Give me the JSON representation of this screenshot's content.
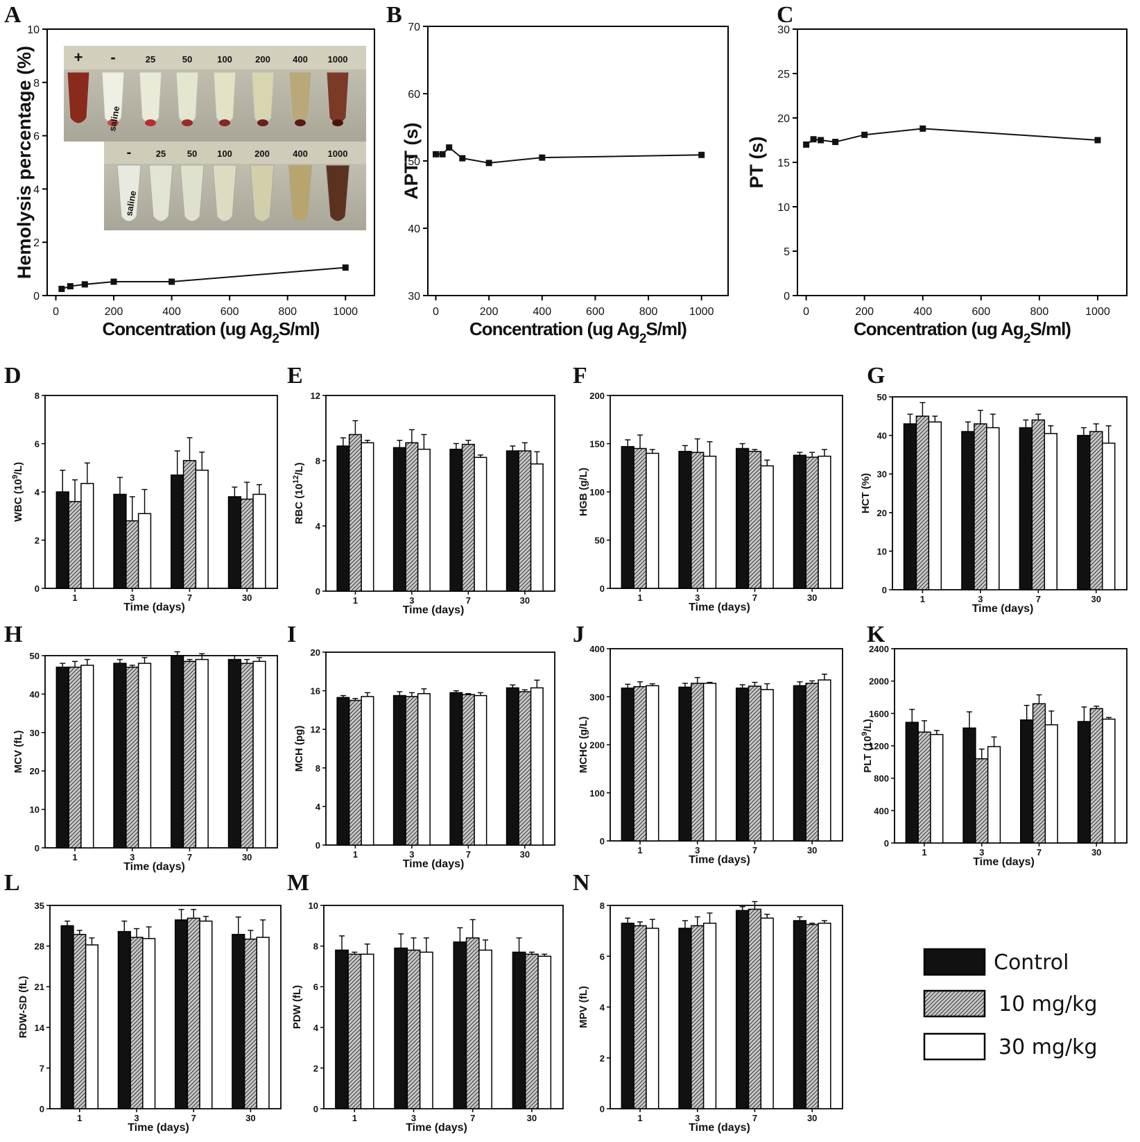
{
  "colors": {
    "control": "#111111",
    "dose10": "#8c8c8c",
    "dose30": "#ffffff",
    "axis": "#000000"
  },
  "legend": [
    {
      "label": "Control",
      "fill": "black"
    },
    {
      "label": "10 mg/kg",
      "fill": "hatch"
    },
    {
      "label": "30 mg/kg",
      "fill": "white"
    }
  ],
  "photo_inset": {
    "row1_labels": [
      "+",
      "-",
      "25",
      "50",
      "100",
      "200",
      "400",
      "1000"
    ],
    "row2_labels": [
      "-",
      "25",
      "50",
      "100",
      "200",
      "400",
      "1000"
    ],
    "tube_text": "saline"
  },
  "chart_data": [
    {
      "panel": "A",
      "type": "line",
      "xlabel": "Concentration (ug Ag₂S/ml)",
      "ylabel": "Hemolysis percentage (%)",
      "xlim": [
        -30,
        1100
      ],
      "ylim": [
        0,
        10
      ],
      "xticks": [
        0,
        200,
        400,
        600,
        800,
        1000
      ],
      "yticks": [
        0,
        2,
        4,
        6,
        8,
        10
      ],
      "x": [
        20,
        50,
        100,
        200,
        400,
        1000
      ],
      "y": [
        0.25,
        0.35,
        0.42,
        0.52,
        0.52,
        1.05
      ]
    },
    {
      "panel": "B",
      "type": "line",
      "xlabel": "Concentration (ug Ag₂S/ml)",
      "ylabel": "APTT (s)",
      "xlim": [
        -30,
        1100
      ],
      "ylim": [
        30,
        70
      ],
      "xticks": [
        0,
        200,
        400,
        600,
        800,
        1000
      ],
      "yticks": [
        30,
        40,
        50,
        60,
        70
      ],
      "x": [
        0,
        25,
        50,
        100,
        200,
        400,
        1000
      ],
      "y": [
        51.0,
        51.0,
        52.0,
        50.4,
        49.7,
        50.5,
        50.9
      ]
    },
    {
      "panel": "C",
      "type": "line",
      "xlabel": "Concentration (ug Ag₂S/ml)",
      "ylabel": "PT (s)",
      "xlim": [
        -30,
        1100
      ],
      "ylim": [
        0,
        30
      ],
      "xticks": [
        0,
        200,
        400,
        600,
        800,
        1000
      ],
      "yticks": [
        0,
        5,
        10,
        15,
        20,
        25,
        30
      ],
      "x": [
        0,
        25,
        50,
        100,
        200,
        400,
        1000
      ],
      "y": [
        17.0,
        17.6,
        17.5,
        17.3,
        18.1,
        18.8,
        17.5
      ]
    },
    {
      "panel": "D",
      "type": "bar",
      "ylabel": "WBC (10⁹/L)",
      "xlabel": "Time (days)",
      "categories": [
        "1",
        "3",
        "7",
        "30"
      ],
      "ylim": [
        0,
        8
      ],
      "yticks": [
        0,
        2,
        4,
        6,
        8
      ],
      "series": [
        {
          "name": "Control",
          "values": [
            4.0,
            3.9,
            4.7,
            3.8
          ],
          "err": [
            0.9,
            0.7,
            1.0,
            0.4
          ]
        },
        {
          "name": "10 mg/kg",
          "values": [
            3.6,
            2.8,
            5.3,
            3.7
          ],
          "err": [
            0.9,
            1.0,
            0.95,
            0.7
          ]
        },
        {
          "name": "30 mg/kg",
          "values": [
            4.35,
            3.1,
            4.9,
            3.9
          ],
          "err": [
            0.85,
            1.0,
            0.75,
            0.4
          ]
        }
      ]
    },
    {
      "panel": "E",
      "type": "bar",
      "ylabel": "RBC (10¹²/L)",
      "xlabel": "Time (days)",
      "categories": [
        "1",
        "3",
        "7",
        "30"
      ],
      "ylim": [
        0,
        12
      ],
      "yticks": [
        0,
        4,
        8,
        12
      ],
      "series": [
        {
          "name": "Control",
          "values": [
            8.9,
            8.8,
            8.7,
            8.6
          ],
          "err": [
            0.5,
            0.45,
            0.35,
            0.3
          ]
        },
        {
          "name": "10 mg/kg",
          "values": [
            9.6,
            9.1,
            9.0,
            8.6
          ],
          "err": [
            0.85,
            0.8,
            0.25,
            0.5
          ]
        },
        {
          "name": "30 mg/kg",
          "values": [
            9.1,
            8.7,
            8.2,
            7.8
          ],
          "err": [
            0.15,
            0.9,
            0.15,
            0.75
          ]
        }
      ]
    },
    {
      "panel": "F",
      "type": "bar",
      "ylabel": "HGB (g/L)",
      "xlabel": "Time (days)",
      "categories": [
        "1",
        "3",
        "7",
        "30"
      ],
      "ylim": [
        0,
        200
      ],
      "yticks": [
        0,
        50,
        100,
        150,
        200
      ],
      "series": [
        {
          "name": "Control",
          "values": [
            147,
            142,
            145,
            138
          ],
          "err": [
            7,
            6,
            5,
            3
          ]
        },
        {
          "name": "10 mg/kg",
          "values": [
            145,
            141,
            142,
            136
          ],
          "err": [
            14,
            14,
            2,
            5
          ]
        },
        {
          "name": "30 mg/kg",
          "values": [
            140,
            137,
            127,
            137
          ],
          "err": [
            4,
            15,
            6,
            7
          ]
        }
      ]
    },
    {
      "panel": "G",
      "type": "bar",
      "ylabel": "HCT (%)",
      "xlabel": "Time (days)",
      "categories": [
        "1",
        "3",
        "7",
        "30"
      ],
      "ylim": [
        0,
        50
      ],
      "yticks": [
        0,
        10,
        20,
        30,
        40,
        50
      ],
      "series": [
        {
          "name": "Control",
          "values": [
            43,
            41,
            42,
            40
          ],
          "err": [
            2.5,
            2.5,
            2.0,
            2.0
          ]
        },
        {
          "name": "10 mg/kg",
          "values": [
            45,
            43,
            44,
            41
          ],
          "err": [
            3.5,
            3.5,
            1.5,
            2.0
          ]
        },
        {
          "name": "30 mg/kg",
          "values": [
            43.5,
            42,
            40.5,
            38
          ],
          "err": [
            1.5,
            3.5,
            2.0,
            4.5
          ]
        }
      ]
    },
    {
      "panel": "H",
      "type": "bar",
      "ylabel": "MCV (fL)",
      "xlabel": "Time (days)",
      "categories": [
        "1",
        "3",
        "7",
        "30"
      ],
      "ylim": [
        0,
        50
      ],
      "yticks": [
        0,
        10,
        20,
        30,
        40,
        50
      ],
      "series": [
        {
          "name": "Control",
          "values": [
            47,
            48,
            50,
            49
          ],
          "err": [
            1.0,
            1.0,
            1.0,
            1.0
          ]
        },
        {
          "name": "10 mg/kg",
          "values": [
            47,
            47,
            48.5,
            48
          ],
          "err": [
            1.5,
            0.5,
            0.5,
            1.0
          ]
        },
        {
          "name": "30 mg/kg",
          "values": [
            47.5,
            48,
            49,
            48.5
          ],
          "err": [
            1.5,
            1.5,
            1.5,
            1.0
          ]
        }
      ]
    },
    {
      "panel": "I",
      "type": "bar",
      "ylabel": "MCH (pg)",
      "xlabel": "Time (days)",
      "categories": [
        "1",
        "3",
        "7",
        "30"
      ],
      "ylim": [
        0,
        20
      ],
      "yticks": [
        0,
        4,
        8,
        12,
        16,
        20
      ],
      "series": [
        {
          "name": "Control",
          "values": [
            15.3,
            15.5,
            15.8,
            16.3
          ],
          "err": [
            0.2,
            0.4,
            0.2,
            0.3
          ]
        },
        {
          "name": "10 mg/kg",
          "values": [
            15.0,
            15.4,
            15.6,
            15.9
          ],
          "err": [
            0.2,
            0.4,
            0.1,
            0.2
          ]
        },
        {
          "name": "30 mg/kg",
          "values": [
            15.4,
            15.7,
            15.5,
            16.3
          ],
          "err": [
            0.4,
            0.5,
            0.3,
            0.8
          ]
        }
      ]
    },
    {
      "panel": "J",
      "type": "bar",
      "ylabel": "MCHC (g/L)",
      "xlabel": "Time (days)",
      "categories": [
        "1",
        "3",
        "7",
        "30"
      ],
      "ylim": [
        0,
        400
      ],
      "yticks": [
        0,
        100,
        200,
        300,
        400
      ],
      "series": [
        {
          "name": "Control",
          "values": [
            318,
            320,
            318,
            323
          ],
          "err": [
            8,
            8,
            7,
            8
          ]
        },
        {
          "name": "10 mg/kg",
          "values": [
            321,
            328,
            322,
            328
          ],
          "err": [
            10,
            12,
            8,
            5
          ]
        },
        {
          "name": "30 mg/kg",
          "values": [
            323,
            328,
            315,
            335
          ],
          "err": [
            4,
            2,
            12,
            12
          ]
        }
      ]
    },
    {
      "panel": "K",
      "type": "bar",
      "ylabel": "PLT (10⁹/L)",
      "xlabel": "Time (days)",
      "categories": [
        "1",
        "3",
        "7",
        "30"
      ],
      "ylim": [
        0,
        2400
      ],
      "yticks": [
        0,
        400,
        800,
        1200,
        1600,
        2000,
        2400
      ],
      "series": [
        {
          "name": "Control",
          "values": [
            1490,
            1420,
            1520,
            1500
          ],
          "err": [
            160,
            200,
            180,
            180
          ]
        },
        {
          "name": "10 mg/kg",
          "values": [
            1370,
            1040,
            1720,
            1660
          ],
          "err": [
            140,
            120,
            110,
            30
          ]
        },
        {
          "name": "30 mg/kg",
          "values": [
            1340,
            1190,
            1460,
            1530
          ],
          "err": [
            50,
            120,
            170,
            20
          ]
        }
      ]
    },
    {
      "panel": "L",
      "type": "bar",
      "ylabel": "RDW-SD (fL)",
      "xlabel": "Time (days)",
      "categories": [
        "1",
        "3",
        "7",
        "30"
      ],
      "ylim": [
        0,
        35
      ],
      "yticks": [
        0,
        7,
        14,
        21,
        28,
        35
      ],
      "series": [
        {
          "name": "Control",
          "values": [
            31.5,
            30.5,
            32.5,
            30.0
          ],
          "err": [
            0.8,
            1.8,
            1.8,
            3.0
          ]
        },
        {
          "name": "10 mg/kg",
          "values": [
            30.0,
            29.5,
            32.8,
            29.2
          ],
          "err": [
            0.7,
            1.5,
            1.5,
            1.5
          ]
        },
        {
          "name": "30 mg/kg",
          "values": [
            28.2,
            29.3,
            32.3,
            29.5
          ],
          "err": [
            1.2,
            2.0,
            0.8,
            3.0
          ]
        }
      ]
    },
    {
      "panel": "M",
      "type": "bar",
      "ylabel": "PDW (fL)",
      "xlabel": "Time (days)",
      "categories": [
        "1",
        "3",
        "7",
        "30"
      ],
      "ylim": [
        0,
        10
      ],
      "yticks": [
        0,
        2,
        4,
        6,
        8,
        10
      ],
      "series": [
        {
          "name": "Control",
          "values": [
            7.8,
            7.9,
            8.2,
            7.7
          ],
          "err": [
            0.7,
            0.7,
            0.7,
            0.7
          ]
        },
        {
          "name": "10 mg/kg",
          "values": [
            7.6,
            7.8,
            8.4,
            7.6
          ],
          "err": [
            0.1,
            0.6,
            0.9,
            0.1
          ]
        },
        {
          "name": "30 mg/kg",
          "values": [
            7.6,
            7.7,
            7.8,
            7.5
          ],
          "err": [
            0.5,
            0.7,
            0.5,
            0.1
          ]
        }
      ]
    },
    {
      "panel": "N",
      "type": "bar",
      "ylabel": "MPV (fL)",
      "xlabel": "Time (days)",
      "categories": [
        "1",
        "3",
        "7",
        "30"
      ],
      "ylim": [
        0,
        8
      ],
      "yticks": [
        0,
        2,
        4,
        6,
        8
      ],
      "series": [
        {
          "name": "Control",
          "values": [
            7.3,
            7.1,
            7.8,
            7.4
          ],
          "err": [
            0.2,
            0.3,
            0.15,
            0.15
          ]
        },
        {
          "name": "10 mg/kg",
          "values": [
            7.2,
            7.2,
            7.85,
            7.25
          ],
          "err": [
            0.15,
            0.35,
            0.3,
            0.05
          ]
        },
        {
          "name": "30 mg/kg",
          "values": [
            7.1,
            7.3,
            7.5,
            7.3
          ],
          "err": [
            0.35,
            0.4,
            0.15,
            0.1
          ]
        }
      ]
    }
  ]
}
